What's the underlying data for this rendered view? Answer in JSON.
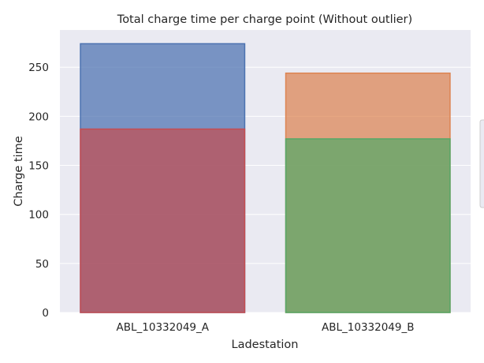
{
  "chart_data": {
    "type": "bar",
    "title": "Total charge time per charge point (Without outlier)",
    "xlabel": "Ladestation",
    "ylabel": "Charge time",
    "categories": [
      "ABL_10332049_A",
      "ABL_10332049_B"
    ],
    "ylim": [
      0,
      288
    ],
    "yticks": [
      0,
      50,
      100,
      150,
      200,
      250
    ],
    "grid": true,
    "overlaid": true,
    "series": [
      {
        "values": [
          274,
          0
        ],
        "color": "#4c72b0"
      },
      {
        "values": [
          0,
          244
        ],
        "color": "#dd8452"
      },
      {
        "values": [
          0,
          177
        ],
        "color": "#55a868"
      },
      {
        "values": [
          187,
          0
        ],
        "color": "#c44e52"
      }
    ],
    "background": "#eaeaf2",
    "legend": "right (mostly cut off)"
  }
}
